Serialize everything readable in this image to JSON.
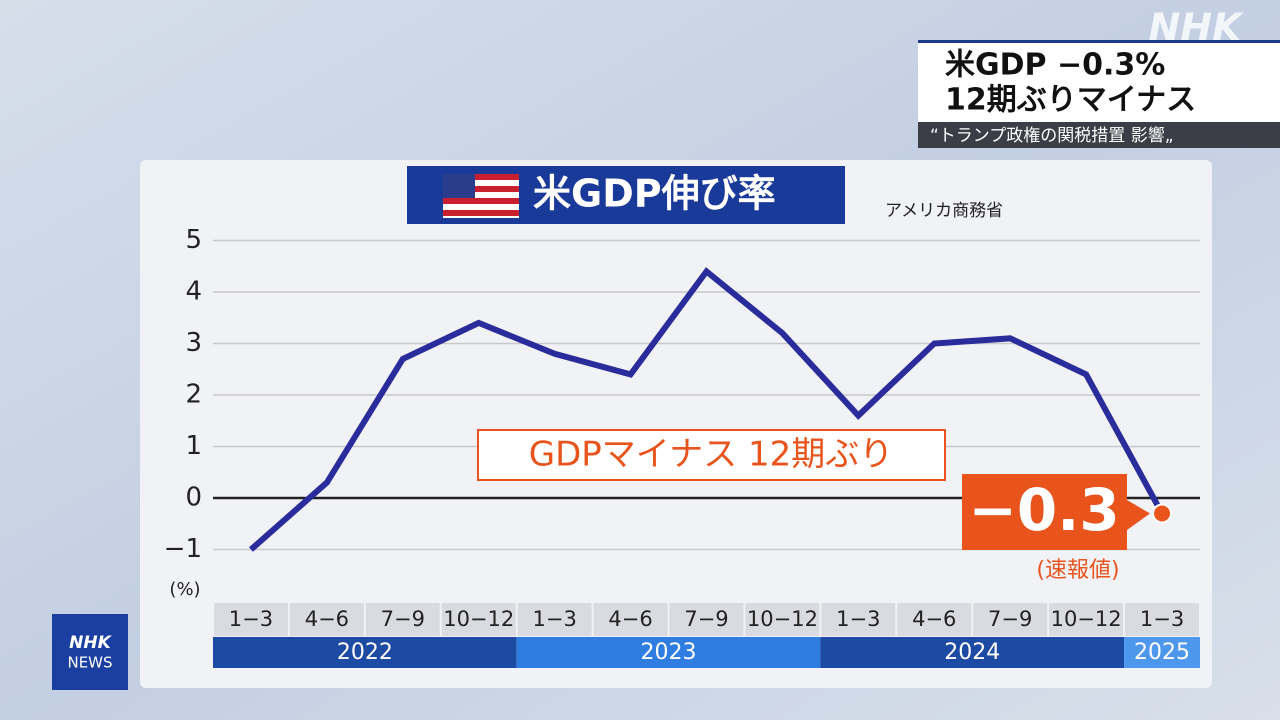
{
  "header": {
    "headline": [
      "米GDP −0.3%",
      "12期ぶりマイナス"
    ],
    "subheadline": "“トランプ政権の関税措置 影響„",
    "logo": "NHK",
    "badge": [
      "NHK",
      "NEWS"
    ]
  },
  "chart_data": {
    "type": "line",
    "title": "米GDP伸び率",
    "source": "アメリカ商務省",
    "y_unit": "(%)",
    "annotation": "GDPマイナス 12期ぶり",
    "value_note": "(速報値)",
    "categories": [
      "1−3",
      "4−6",
      "7−9",
      "10−12",
      "1−3",
      "4−6",
      "7−9",
      "10−12",
      "1−3",
      "4−6",
      "7−9",
      "10−12",
      "1−3"
    ],
    "years": [
      "2022",
      "2022",
      "2022",
      "2022",
      "2023",
      "2023",
      "2023",
      "2023",
      "2024",
      "2024",
      "2024",
      "2024",
      "2025"
    ],
    "values": [
      -1.0,
      0.3,
      2.7,
      3.4,
      2.8,
      2.4,
      4.4,
      3.2,
      1.6,
      3.0,
      3.1,
      2.4,
      -0.3
    ],
    "value_labels": [
      null,
      null,
      null,
      null,
      null,
      null,
      null,
      null,
      null,
      null,
      null,
      null,
      "−0.3"
    ],
    "color": "#2a2c9c",
    "highlight_color": "#e8541c",
    "ylim": [
      -1,
      5
    ],
    "yticks": [
      {
        "value": -1,
        "label": "−1"
      },
      0,
      1,
      2,
      3,
      4,
      5
    ],
    "grid": true
  }
}
